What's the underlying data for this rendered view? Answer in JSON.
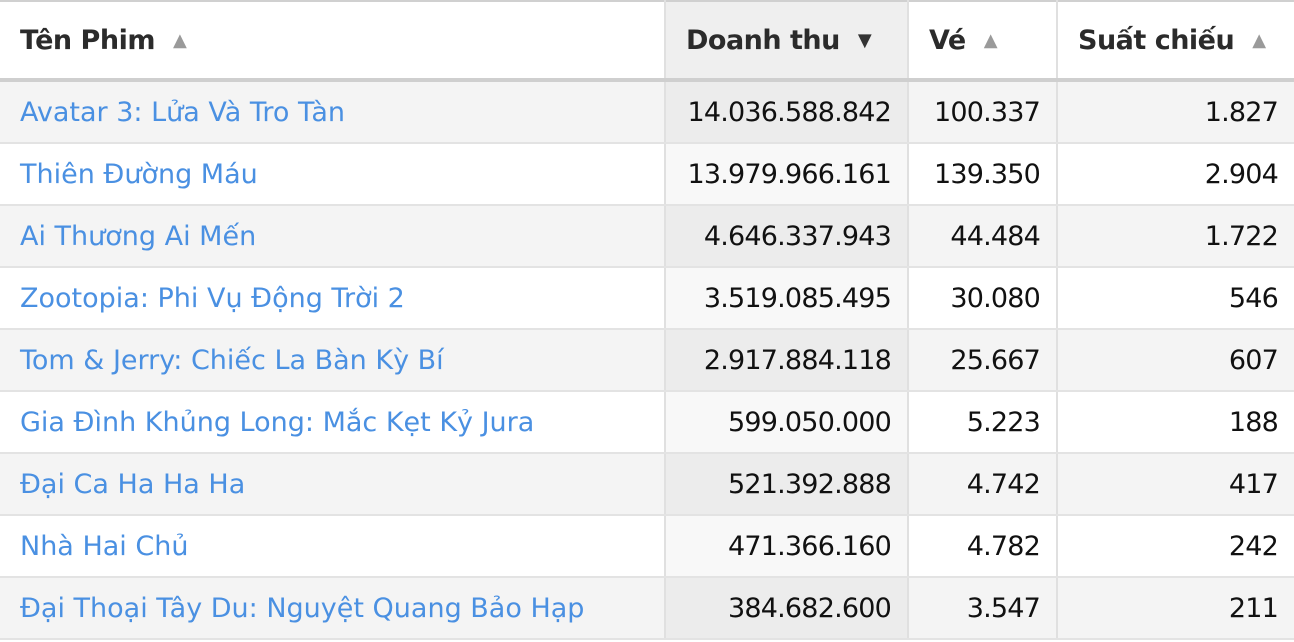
{
  "columns": [
    {
      "label": "Tên Phim",
      "sort": "asc"
    },
    {
      "label": "Doanh thu",
      "sort": "desc"
    },
    {
      "label": "Vé",
      "sort": "asc"
    },
    {
      "label": "Suất chiếu",
      "sort": "asc"
    }
  ],
  "icons": {
    "asc": "triangle-up",
    "desc": "triangle-down"
  },
  "colors": {
    "link": "#4a90e2",
    "sorted_header_bg": "#efefef"
  },
  "sorted_column": "Doanh thu",
  "rows": [
    {
      "title": "Avatar 3: Lửa Và Tro Tàn",
      "revenue": "14.036.588.842",
      "tickets": "100.337",
      "showtimes": "1.827"
    },
    {
      "title": "Thiên Đường Máu",
      "revenue": "13.979.966.161",
      "tickets": "139.350",
      "showtimes": "2.904"
    },
    {
      "title": "Ai Thương Ai Mến",
      "revenue": "4.646.337.943",
      "tickets": "44.484",
      "showtimes": "1.722"
    },
    {
      "title": "Zootopia: Phi Vụ Động Trời 2",
      "revenue": "3.519.085.495",
      "tickets": "30.080",
      "showtimes": "546"
    },
    {
      "title": "Tom & Jerry: Chiếc La Bàn Kỳ Bí",
      "revenue": "2.917.884.118",
      "tickets": "25.667",
      "showtimes": "607"
    },
    {
      "title": "Gia Đình Khủng Long: Mắc Kẹt Kỷ Jura",
      "revenue": "599.050.000",
      "tickets": "5.223",
      "showtimes": "188"
    },
    {
      "title": "Đại Ca Ha Ha Ha",
      "revenue": "521.392.888",
      "tickets": "4.742",
      "showtimes": "417"
    },
    {
      "title": "Nhà Hai Chủ",
      "revenue": "471.366.160",
      "tickets": "4.782",
      "showtimes": "242"
    },
    {
      "title": "Đại Thoại Tây Du: Nguyệt Quang Bảo Hạp",
      "revenue": "384.682.600",
      "tickets": "3.547",
      "showtimes": "211"
    }
  ]
}
